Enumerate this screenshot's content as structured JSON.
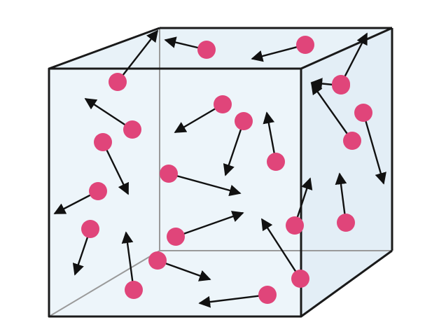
{
  "diagram": {
    "colors": {
      "background": "#ffffff",
      "box_fill": "#e8f2f8",
      "box_edge": "#1a1a1a",
      "hidden_edge": "#9a9a9a",
      "particle": "#e0457a",
      "arrow": "#111111"
    },
    "icons": {
      "particle": "particle-icon",
      "velocity": "velocity-arrow-icon"
    },
    "particle_count": 22
  }
}
